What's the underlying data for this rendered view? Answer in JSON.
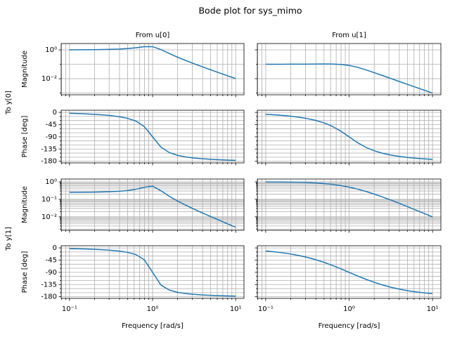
{
  "title": "Bode plot for sys_mimo",
  "row_labels": [
    "To y[0]",
    "To y[1]"
  ],
  "chart_data": [
    {
      "type": "line",
      "title": "From u[0]",
      "ylabel": "Magnitude",
      "color": "#1f77b4",
      "x": [
        0.1,
        0.1259,
        0.1585,
        0.1995,
        0.2512,
        0.3162,
        0.3981,
        0.5012,
        0.631,
        0.7943,
        1,
        1.259,
        1.585,
        1.995,
        2.512,
        3.162,
        3.981,
        5.012,
        6.31,
        7.943,
        10
      ],
      "values": [
        1.008,
        1.013,
        1.021,
        1.033,
        1.054,
        1.087,
        1.143,
        1.239,
        1.406,
        1.659,
        1.667,
        1.047,
        0.56,
        0.3113,
        0.1812,
        0.1087,
        0.0665,
        0.04114,
        0.02565,
        0.01606,
        0.01008
      ],
      "xlog": true,
      "xlim": [
        0.0794,
        12.59
      ],
      "xticks": [
        0.1,
        1,
        10
      ],
      "xminor": [
        0.08,
        0.09,
        0.2,
        0.3,
        0.4,
        0.5,
        0.6,
        0.7,
        0.8,
        0.9,
        2,
        3,
        4,
        5,
        6,
        7,
        8,
        9
      ],
      "show_xticklabels": false,
      "ylog": true,
      "ylim": [
        0.00076,
        2.75
      ],
      "yticks": [
        {
          "value": 0.01,
          "label": "10⁻²"
        },
        {
          "value": 1,
          "label": "10⁰"
        }
      ],
      "yminor": [
        0.001,
        0.1
      ],
      "show_yticklabels": true,
      "grid": true
    },
    {
      "type": "line",
      "title": "From u[1]",
      "color": "#1f77b4",
      "x": [
        0.1,
        0.1259,
        0.1585,
        0.1995,
        0.2512,
        0.3162,
        0.3981,
        0.5012,
        0.631,
        0.7943,
        1,
        1.259,
        1.585,
        1.995,
        2.512,
        3.162,
        3.981,
        5.012,
        6.31,
        7.943,
        10
      ],
      "values": [
        0.1003,
        0.1004,
        0.1007,
        0.1011,
        0.1016,
        0.1024,
        0.1033,
        0.1041,
        0.1034,
        0.0978,
        0.0833,
        0.0617,
        0.0412,
        0.0262,
        0.01638,
        0.01024,
        0.00641,
        0.00402,
        0.00253,
        0.00159,
        0.001003
      ],
      "xlog": true,
      "xlim": [
        0.0794,
        12.59
      ],
      "xticks": [
        0.1,
        1,
        10
      ],
      "xminor": [
        0.08,
        0.09,
        0.2,
        0.3,
        0.4,
        0.5,
        0.6,
        0.7,
        0.8,
        0.9,
        2,
        3,
        4,
        5,
        6,
        7,
        8,
        9
      ],
      "show_xticklabels": false,
      "ylog": true,
      "ylim": [
        0.00076,
        2.75
      ],
      "yticks": [
        0.01,
        1
      ],
      "yminor": [
        0.001,
        0.1
      ],
      "show_yticklabels": false,
      "grid": true
    },
    {
      "type": "line",
      "ylabel": "Phase [deg]",
      "color": "#1f77b4",
      "x": [
        0.1,
        0.1259,
        0.1585,
        0.1995,
        0.2512,
        0.3162,
        0.3981,
        0.5012,
        0.631,
        0.7943,
        1,
        1.259,
        1.585,
        1.995,
        2.512,
        3.162,
        3.981,
        5.012,
        6.31,
        7.943,
        10
      ],
      "values": [
        -3.47,
        -4.39,
        -5.57,
        -7.11,
        -9.14,
        -11.9,
        -15.85,
        -21.88,
        -32.17,
        -52.25,
        -90,
        -127.76,
        -147.83,
        -158.12,
        -164.15,
        -168.1,
        -170.86,
        -172.89,
        -174.43,
        -175.61,
        -176.53
      ],
      "xlog": true,
      "xlim": [
        0.0794,
        12.59
      ],
      "xticks": [
        0.1,
        1,
        10
      ],
      "xminor": [
        0.08,
        0.09,
        0.2,
        0.3,
        0.4,
        0.5,
        0.6,
        0.7,
        0.8,
        0.9,
        2,
        3,
        4,
        5,
        6,
        7,
        8,
        9
      ],
      "show_xticklabels": false,
      "ylim": [
        -186,
        8
      ],
      "yticks": [
        -180,
        -135,
        -90,
        -45,
        0
      ],
      "yminor": [
        -165,
        -150,
        -120,
        -105,
        -75,
        -60,
        -30,
        -15
      ],
      "show_yticklabels": true,
      "grid": true
    },
    {
      "type": "line",
      "color": "#1f77b4",
      "x": [
        0.1,
        0.1259,
        0.1585,
        0.1995,
        0.2512,
        0.3162,
        0.3981,
        0.5012,
        0.631,
        0.7943,
        1,
        1.259,
        1.585,
        1.995,
        2.512,
        3.162,
        3.981,
        5.012,
        6.31,
        7.943,
        10
      ],
      "values": [
        -6.91,
        -8.73,
        -11.04,
        -14,
        -17.83,
        -22.87,
        -29.59,
        -38.77,
        -51.52,
        -68.84,
        -90,
        -111.16,
        -128.48,
        -141.23,
        -150.41,
        -157.13,
        -162.17,
        -166,
        -168.96,
        -171.27,
        -173.09
      ],
      "xlog": true,
      "xlim": [
        0.0794,
        12.59
      ],
      "xticks": [
        0.1,
        1,
        10
      ],
      "xminor": [
        0.08,
        0.09,
        0.2,
        0.3,
        0.4,
        0.5,
        0.6,
        0.7,
        0.8,
        0.9,
        2,
        3,
        4,
        5,
        6,
        7,
        8,
        9
      ],
      "show_xticklabels": false,
      "ylim": [
        -186,
        8
      ],
      "yticks": [
        -180,
        -135,
        -90,
        -45,
        0
      ],
      "yminor": [
        -165,
        -150,
        -120,
        -105,
        -75,
        -60,
        -30,
        -15
      ],
      "show_yticklabels": false,
      "grid": true
    },
    {
      "type": "line",
      "ylabel": "Magnitude",
      "color": "#1f77b4",
      "x": [
        0.1,
        0.1259,
        0.1585,
        0.1995,
        0.2512,
        0.3162,
        0.3981,
        0.5012,
        0.631,
        0.7943,
        1,
        1.259,
        1.585,
        1.995,
        2.512,
        3.162,
        3.981,
        5.012,
        6.31,
        7.943,
        10
      ],
      "values": [
        0.2523,
        0.2536,
        0.2558,
        0.2593,
        0.265,
        0.2745,
        0.2909,
        0.3203,
        0.3771,
        0.4918,
        0.5682,
        0.3103,
        0.1502,
        0.0804,
        0.0461,
        0.02745,
        0.01672,
        0.01032,
        0.00643,
        0.00402,
        0.00252
      ],
      "xlog": true,
      "xlim": [
        0.0794,
        12.59
      ],
      "xticks": [
        0.1,
        1,
        10
      ],
      "xminor": [
        0.08,
        0.09,
        0.2,
        0.3,
        0.4,
        0.5,
        0.6,
        0.7,
        0.8,
        0.9,
        2,
        3,
        4,
        5,
        6,
        7,
        8,
        9
      ],
      "show_xticklabels": false,
      "ylog": true,
      "ylim": [
        0.0017,
        1.45
      ],
      "yticks": [
        {
          "value": 0.01,
          "label": "10⁻²"
        },
        {
          "value": 0.1,
          "label": "10⁻¹"
        },
        {
          "value": 1,
          "label": "10⁰"
        }
      ],
      "yminor": [
        0.002,
        0.003,
        0.004,
        0.005,
        0.006,
        0.007,
        0.008,
        0.009,
        0.02,
        0.03,
        0.04,
        0.05,
        0.06,
        0.07,
        0.08,
        0.09,
        0.2,
        0.3,
        0.4,
        0.5,
        0.6,
        0.7,
        0.8,
        0.9
      ],
      "show_yticklabels": true,
      "grid": true
    },
    {
      "type": "line",
      "color": "#1f77b4",
      "x": [
        0.1,
        0.1259,
        0.1585,
        0.1995,
        0.2512,
        0.3162,
        0.3981,
        0.5012,
        0.631,
        0.7943,
        1,
        1.259,
        1.585,
        1.995,
        2.512,
        3.162,
        3.981,
        5.012,
        6.31,
        7.943,
        10
      ],
      "values": [
        0.9901,
        0.9844,
        0.9755,
        0.9617,
        0.9406,
        0.9091,
        0.8632,
        0.7993,
        0.7153,
        0.6131,
        0.5,
        0.3869,
        0.2847,
        0.2007,
        0.1368,
        0.0909,
        0.0594,
        0.0383,
        0.0245,
        0.0156,
        0.0099
      ],
      "xlog": true,
      "xlim": [
        0.0794,
        12.59
      ],
      "xticks": [
        0.1,
        1,
        10
      ],
      "xminor": [
        0.08,
        0.09,
        0.2,
        0.3,
        0.4,
        0.5,
        0.6,
        0.7,
        0.8,
        0.9,
        2,
        3,
        4,
        5,
        6,
        7,
        8,
        9
      ],
      "show_xticklabels": false,
      "ylog": true,
      "ylim": [
        0.0017,
        1.45
      ],
      "yticks": [
        0.01,
        0.1,
        1
      ],
      "yminor": [
        0.002,
        0.003,
        0.004,
        0.005,
        0.006,
        0.007,
        0.008,
        0.009,
        0.02,
        0.03,
        0.04,
        0.05,
        0.06,
        0.07,
        0.08,
        0.09,
        0.2,
        0.3,
        0.4,
        0.5,
        0.6,
        0.7,
        0.8,
        0.9
      ],
      "show_yticklabels": false,
      "grid": true
    },
    {
      "type": "line",
      "ylabel": "Phase [deg]",
      "xlabel": "Frequency [rad/s]",
      "color": "#1f77b4",
      "x": [
        0.1,
        0.1259,
        0.1585,
        0.1995,
        0.2512,
        0.3162,
        0.3981,
        0.5012,
        0.631,
        0.7943,
        1,
        1.259,
        1.585,
        1.995,
        2.512,
        3.162,
        3.981,
        5.012,
        6.31,
        7.943,
        10
      ],
      "values": [
        -2.54,
        -3.22,
        -4.09,
        -5.23,
        -6.73,
        -8.79,
        -11.76,
        -16.41,
        -24.76,
        -43.45,
        -90,
        -136.56,
        -155.24,
        -163.59,
        -168.24,
        -171.21,
        -173.27,
        -174.78,
        -175.91,
        -176.78,
        -177.46
      ],
      "xlog": true,
      "xlim": [
        0.0794,
        12.59
      ],
      "xticks": [
        {
          "value": 0.1,
          "label": "10⁻¹"
        },
        {
          "value": 1,
          "label": "10⁰"
        },
        {
          "value": 10,
          "label": "10¹"
        }
      ],
      "xminor": [
        0.08,
        0.09,
        0.2,
        0.3,
        0.4,
        0.5,
        0.6,
        0.7,
        0.8,
        0.9,
        2,
        3,
        4,
        5,
        6,
        7,
        8,
        9
      ],
      "show_xticklabels": true,
      "ylim": [
        -186,
        8
      ],
      "yticks": [
        -180,
        -135,
        -90,
        -45,
        0
      ],
      "yminor": [
        -165,
        -150,
        -120,
        -105,
        -75,
        -60,
        -30,
        -15
      ],
      "show_yticklabels": true,
      "grid": true
    },
    {
      "type": "line",
      "xlabel": "Frequency [rad/s]",
      "color": "#1f77b4",
      "x": [
        0.1,
        0.1259,
        0.1585,
        0.1995,
        0.2512,
        0.3162,
        0.3981,
        0.5012,
        0.631,
        0.7943,
        1,
        1.259,
        1.585,
        1.995,
        2.512,
        3.162,
        3.981,
        5.012,
        6.31,
        7.943,
        10
      ],
      "values": [
        -11.42,
        -14.36,
        -18.02,
        -22.56,
        -28.2,
        -35.1,
        -43.4,
        -53.24,
        -64.5,
        -76.92,
        -90,
        -103.08,
        -115.5,
        -126.76,
        -136.6,
        -144.9,
        -151.8,
        -157.44,
        -161.98,
        -165.64,
        -168.58
      ],
      "xlog": true,
      "xlim": [
        0.0794,
        12.59
      ],
      "xticks": [
        {
          "value": 0.1,
          "label": "10⁻¹"
        },
        {
          "value": 1,
          "label": "10⁰"
        },
        {
          "value": 10,
          "label": "10¹"
        }
      ],
      "xminor": [
        0.08,
        0.09,
        0.2,
        0.3,
        0.4,
        0.5,
        0.6,
        0.7,
        0.8,
        0.9,
        2,
        3,
        4,
        5,
        6,
        7,
        8,
        9
      ],
      "show_xticklabels": true,
      "ylim": [
        -186,
        8
      ],
      "yticks": [
        -180,
        -135,
        -90,
        -45,
        0
      ],
      "yminor": [
        -165,
        -150,
        -120,
        -105,
        -75,
        -60,
        -30,
        -15
      ],
      "show_yticklabels": false,
      "grid": true
    }
  ]
}
